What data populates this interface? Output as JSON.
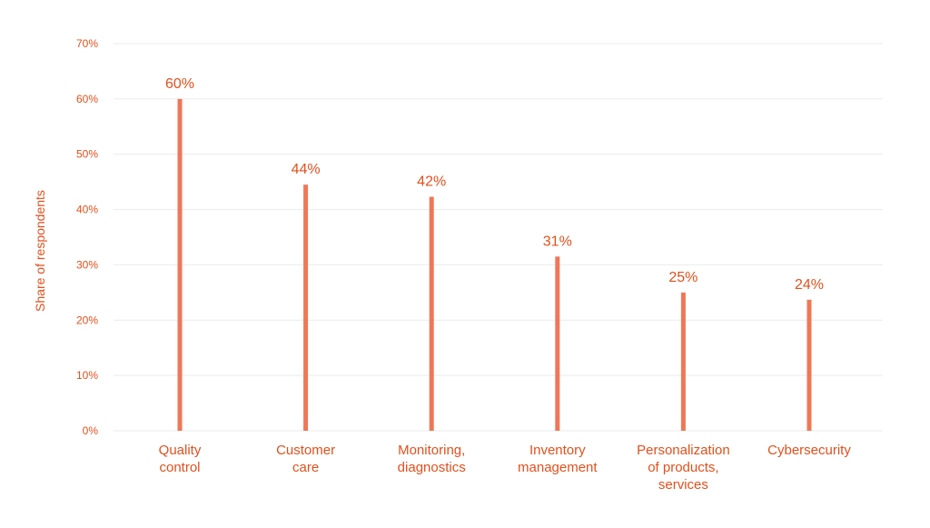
{
  "theme": {
    "accent": "#ef7758",
    "text": "#e2501c",
    "grid": "#ebebeb"
  },
  "chart_data": {
    "type": "bar",
    "title": "",
    "xlabel": "",
    "ylabel": "Share of respondents",
    "ylim": [
      0,
      70
    ],
    "yticks": [
      0,
      10,
      20,
      30,
      40,
      50,
      60,
      70
    ],
    "ytick_labels": [
      "0%",
      "10%",
      "20%",
      "30%",
      "40%",
      "50%",
      "60%",
      "70%"
    ],
    "grid": true,
    "legend": "none",
    "categories": [
      [
        "Quality",
        "control"
      ],
      [
        "Customer",
        "care"
      ],
      [
        "Monitoring,",
        "diagnostics"
      ],
      [
        "Inventory",
        "management"
      ],
      [
        "Personalization",
        "of products,",
        "services"
      ],
      [
        "Cybersecurity"
      ]
    ],
    "values": [
      60,
      44.5,
      42.3,
      31.5,
      25,
      23.7
    ],
    "data_labels": [
      "60%",
      "44%",
      "42%",
      "31%",
      "25%",
      "24%"
    ]
  }
}
